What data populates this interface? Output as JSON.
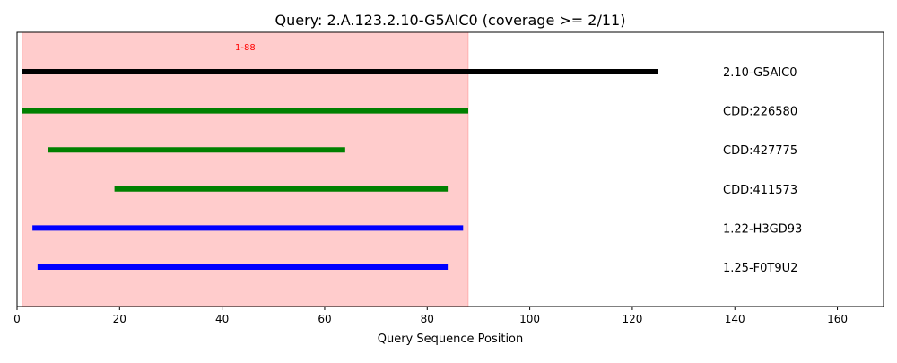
{
  "chart_data": {
    "type": "range",
    "title": "Query: 2.A.123.2.10-G5AIC0 (coverage >= 2/11)",
    "xlabel": "Query Sequence Position",
    "ylabel": "",
    "xlim": [
      0,
      169
    ],
    "x_ticks": [
      0,
      20,
      40,
      60,
      80,
      100,
      120,
      140,
      160
    ],
    "grid": false,
    "highlight_region": {
      "start": 1,
      "end": 88,
      "label": "1-88",
      "color": "#ff0000"
    },
    "rows": [
      {
        "name": "2.10-G5AIC0",
        "start": 1,
        "end": 125,
        "color": "#000000"
      },
      {
        "name": "CDD:226580",
        "start": 1,
        "end": 88,
        "color": "#008000"
      },
      {
        "name": "CDD:427775",
        "start": 6,
        "end": 64,
        "color": "#008000"
      },
      {
        "name": "CDD:411573",
        "start": 19,
        "end": 84,
        "color": "#008000"
      },
      {
        "name": "1.22-H3GD93",
        "start": 3,
        "end": 87,
        "color": "#0000ff"
      },
      {
        "name": "1.25-F0T9U2",
        "start": 4,
        "end": 84,
        "color": "#0000ff"
      }
    ]
  }
}
